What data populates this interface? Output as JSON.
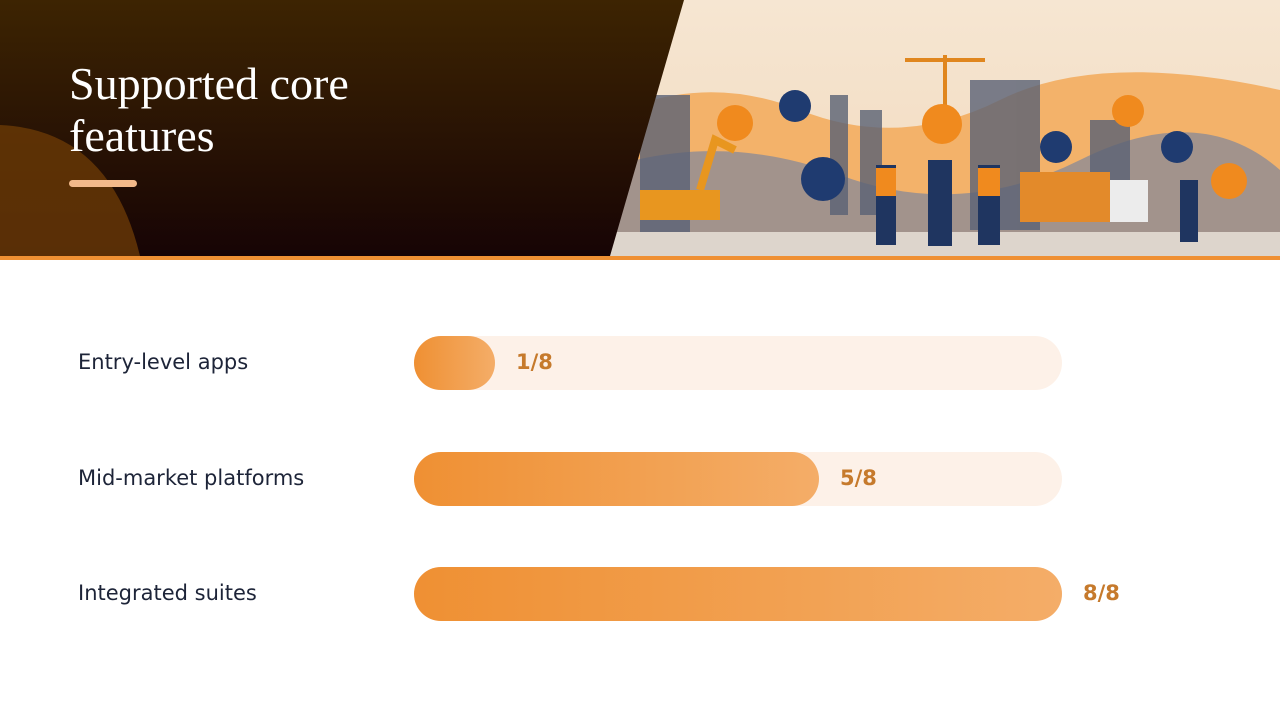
{
  "chart_data": {
    "type": "bar",
    "orientation": "horizontal",
    "title": "Supported core features",
    "categories": [
      "Entry-level apps",
      "Mid-market platforms",
      "Integrated suites"
    ],
    "values": [
      1,
      5,
      8
    ],
    "value_labels": [
      "1/8",
      "5/8",
      "8/8"
    ],
    "xlim": [
      0,
      8
    ],
    "color": "#f0923a"
  }
}
